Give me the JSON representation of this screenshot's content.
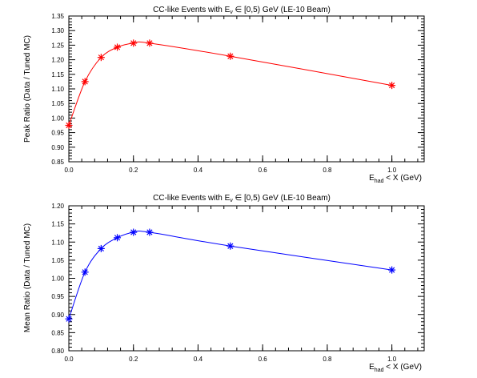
{
  "chart_data": [
    {
      "type": "line",
      "title": {
        "pre": "CC-like Events with E",
        "sub": "ν",
        "post": " ∈ [0,5) GeV (LE-10 Beam)"
      },
      "xlabel": {
        "pre": "E",
        "sub": "had",
        "post": " < X (GeV)"
      },
      "ylabel": "Peak Ratio (Data / Tuned MC)",
      "xlim": [
        0,
        1.1
      ],
      "ylim": [
        0.85,
        1.35
      ],
      "xticks": [
        0.0,
        0.2,
        0.4,
        0.6,
        0.8,
        1.0
      ],
      "xtick_labels": [
        "0.0",
        "0.2",
        "0.4",
        "0.6",
        "0.8",
        "1.0"
      ],
      "yticks": [
        0.85,
        0.9,
        0.95,
        1.0,
        1.05,
        1.1,
        1.15,
        1.2,
        1.25,
        1.3,
        1.35
      ],
      "ytick_labels": [
        "0.85",
        "0.90",
        "0.95",
        "1.00",
        "1.05",
        "1.10",
        "1.15",
        "1.20",
        "1.25",
        "1.30",
        "1.35"
      ],
      "color": "#ff0000",
      "grid": false,
      "series": [
        {
          "x": [
            0.0,
            0.05,
            0.1,
            0.15,
            0.2,
            0.25,
            0.5,
            1.0
          ],
          "y": [
            0.975,
            1.125,
            1.208,
            1.243,
            1.257,
            1.257,
            1.212,
            1.112
          ]
        }
      ]
    },
    {
      "type": "line",
      "title": {
        "pre": "CC-like Events with E",
        "sub": "ν",
        "post": " ∈ [0,5) GeV (LE-10 Beam)"
      },
      "xlabel": {
        "pre": "E",
        "sub": "had",
        "post": " < X (GeV)"
      },
      "ylabel": "Mean Ratio (Data / Tuned MC)",
      "xlim": [
        0,
        1.1
      ],
      "ylim": [
        0.8,
        1.2
      ],
      "xticks": [
        0.0,
        0.2,
        0.4,
        0.6,
        0.8,
        1.0
      ],
      "xtick_labels": [
        "0.0",
        "0.2",
        "0.4",
        "0.6",
        "0.8",
        "1.0"
      ],
      "yticks": [
        0.8,
        0.85,
        0.9,
        0.95,
        1.0,
        1.05,
        1.1,
        1.15,
        1.2
      ],
      "ytick_labels": [
        "0.80",
        "0.85",
        "0.90",
        "0.95",
        "1.00",
        "1.05",
        "1.10",
        "1.15",
        "1.20"
      ],
      "color": "#0000ff",
      "grid": false,
      "series": [
        {
          "x": [
            0.0,
            0.05,
            0.1,
            0.15,
            0.2,
            0.25,
            0.5,
            1.0
          ],
          "y": [
            0.888,
            1.017,
            1.082,
            1.112,
            1.127,
            1.127,
            1.089,
            1.023
          ]
        }
      ]
    }
  ]
}
